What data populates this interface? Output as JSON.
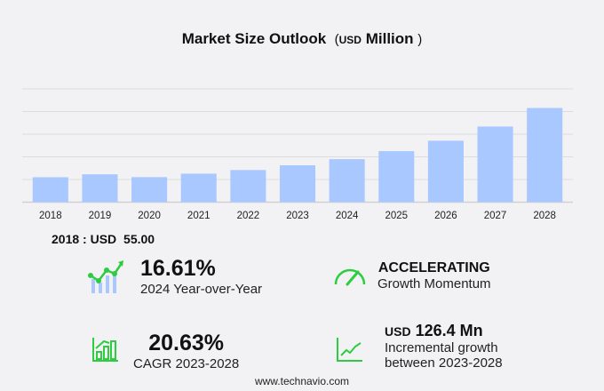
{
  "title": {
    "main": "Market Size Outlook",
    "open": "(",
    "unit": "USD",
    "unit_word": "Million",
    "close": ")"
  },
  "chart_data": {
    "type": "bar",
    "title": "Market Size Outlook (USD Million)",
    "categories": [
      "2018",
      "2019",
      "2020",
      "2021",
      "2022",
      "2023",
      "2024",
      "2025",
      "2026",
      "2027",
      "2028"
    ],
    "values": [
      55.0,
      61.5,
      55.2,
      62.9,
      70.9,
      81.4,
      94.9,
      112.6,
      135.6,
      166.8,
      207.8
    ],
    "ylim": [
      0,
      250
    ],
    "grid": true,
    "bar_color": "#a8c8ff"
  },
  "base_year": {
    "label": "2018 : USD",
    "value": "55.00"
  },
  "kpis": {
    "yoy": {
      "value": "16.61%",
      "label": "2024 Year-over-Year"
    },
    "momentum": {
      "value": "ACCELERATING",
      "label": "Growth Momentum"
    },
    "cagr": {
      "value": "20.63%",
      "label": "CAGR 2023-2028"
    },
    "incremental": {
      "prefix": "USD",
      "value": "126.4 Mn",
      "label1": "Incremental growth",
      "label2": "between 2023-2028"
    }
  },
  "footer": "www.technavio.com",
  "colors": {
    "accent": "#2ecc40",
    "bar": "#a8c8ff"
  }
}
